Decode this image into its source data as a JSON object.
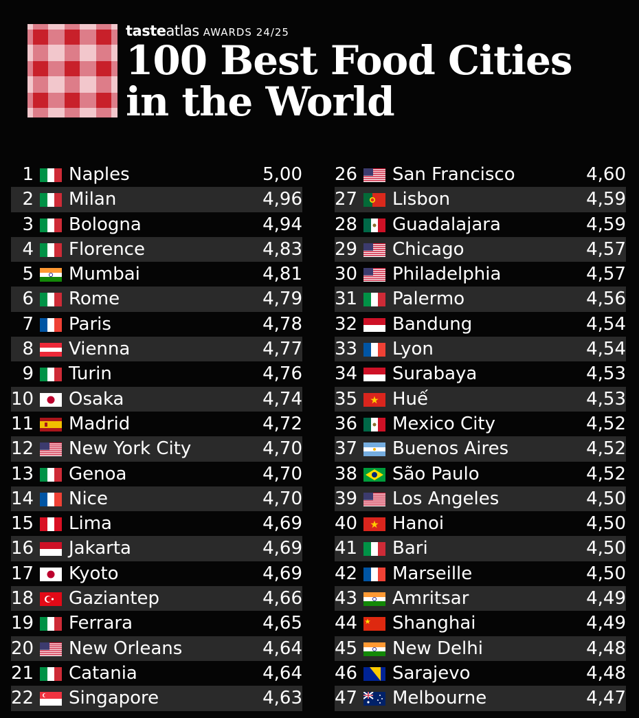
{
  "header": {
    "brand_taste": "taste",
    "brand_atlas": "atlas",
    "awards": "AWARDS 24/25",
    "title_line1": "100 Best Food Cities",
    "title_line2": "in the World"
  },
  "colors": {
    "background": "#050505",
    "row_alt": "#2a2a2a",
    "logo_red": "#c8202a",
    "text": "#ffffff"
  },
  "left_column": [
    {
      "rank": "1",
      "city": "Naples",
      "score": "5,00",
      "flag": "italy"
    },
    {
      "rank": "2",
      "city": "Milan",
      "score": "4,96",
      "flag": "italy"
    },
    {
      "rank": "3",
      "city": "Bologna",
      "score": "4,94",
      "flag": "italy"
    },
    {
      "rank": "4",
      "city": "Florence",
      "score": "4,83",
      "flag": "italy"
    },
    {
      "rank": "5",
      "city": "Mumbai",
      "score": "4,81",
      "flag": "india"
    },
    {
      "rank": "6",
      "city": "Rome",
      "score": "4,79",
      "flag": "italy"
    },
    {
      "rank": "7",
      "city": "Paris",
      "score": "4,78",
      "flag": "france"
    },
    {
      "rank": "8",
      "city": "Vienna",
      "score": "4,77",
      "flag": "austria"
    },
    {
      "rank": "9",
      "city": "Turin",
      "score": "4,76",
      "flag": "italy"
    },
    {
      "rank": "10",
      "city": "Osaka",
      "score": "4,74",
      "flag": "japan"
    },
    {
      "rank": "11",
      "city": "Madrid",
      "score": "4,72",
      "flag": "spain"
    },
    {
      "rank": "12",
      "city": "New York City",
      "score": "4,70",
      "flag": "usa"
    },
    {
      "rank": "13",
      "city": "Genoa",
      "score": "4,70",
      "flag": "italy"
    },
    {
      "rank": "14",
      "city": "Nice",
      "score": "4,70",
      "flag": "france"
    },
    {
      "rank": "15",
      "city": "Lima",
      "score": "4,69",
      "flag": "peru"
    },
    {
      "rank": "16",
      "city": "Jakarta",
      "score": "4,69",
      "flag": "indonesia"
    },
    {
      "rank": "17",
      "city": "Kyoto",
      "score": "4,69",
      "flag": "japan"
    },
    {
      "rank": "18",
      "city": "Gaziantep",
      "score": "4,66",
      "flag": "turkey"
    },
    {
      "rank": "19",
      "city": "Ferrara",
      "score": "4,65",
      "flag": "italy"
    },
    {
      "rank": "20",
      "city": "New Orleans",
      "score": "4,64",
      "flag": "usa"
    },
    {
      "rank": "21",
      "city": "Catania",
      "score": "4,64",
      "flag": "italy"
    },
    {
      "rank": "22",
      "city": "Singapore",
      "score": "4,63",
      "flag": "singapore"
    }
  ],
  "right_column": [
    {
      "rank": "26",
      "city": "San Francisco",
      "score": "4,60",
      "flag": "usa"
    },
    {
      "rank": "27",
      "city": "Lisbon",
      "score": "4,59",
      "flag": "portugal"
    },
    {
      "rank": "28",
      "city": "Guadalajara",
      "score": "4,59",
      "flag": "mexico"
    },
    {
      "rank": "29",
      "city": "Chicago",
      "score": "4,57",
      "flag": "usa"
    },
    {
      "rank": "30",
      "city": "Philadelphia",
      "score": "4,57",
      "flag": "usa"
    },
    {
      "rank": "31",
      "city": "Palermo",
      "score": "4,56",
      "flag": "italy"
    },
    {
      "rank": "32",
      "city": "Bandung",
      "score": "4,54",
      "flag": "indonesia"
    },
    {
      "rank": "33",
      "city": "Lyon",
      "score": "4,54",
      "flag": "france"
    },
    {
      "rank": "34",
      "city": "Surabaya",
      "score": "4,53",
      "flag": "indonesia"
    },
    {
      "rank": "35",
      "city": "Huế",
      "score": "4,53",
      "flag": "vietnam"
    },
    {
      "rank": "36",
      "city": "Mexico City",
      "score": "4,52",
      "flag": "mexico"
    },
    {
      "rank": "37",
      "city": "Buenos Aires",
      "score": "4,52",
      "flag": "argentina"
    },
    {
      "rank": "38",
      "city": "São Paulo",
      "score": "4,52",
      "flag": "brazil"
    },
    {
      "rank": "39",
      "city": "Los Angeles",
      "score": "4,50",
      "flag": "usa"
    },
    {
      "rank": "40",
      "city": "Hanoi",
      "score": "4,50",
      "flag": "vietnam"
    },
    {
      "rank": "41",
      "city": "Bari",
      "score": "4,50",
      "flag": "italy"
    },
    {
      "rank": "42",
      "city": "Marseille",
      "score": "4,50",
      "flag": "france"
    },
    {
      "rank": "43",
      "city": "Amritsar",
      "score": "4,49",
      "flag": "india"
    },
    {
      "rank": "44",
      "city": "Shanghai",
      "score": "4,49",
      "flag": "china"
    },
    {
      "rank": "45",
      "city": "New Delhi",
      "score": "4,48",
      "flag": "india"
    },
    {
      "rank": "46",
      "city": "Sarajevo",
      "score": "4,48",
      "flag": "bosnia"
    },
    {
      "rank": "47",
      "city": "Melbourne",
      "score": "4,47",
      "flag": "australia"
    }
  ]
}
